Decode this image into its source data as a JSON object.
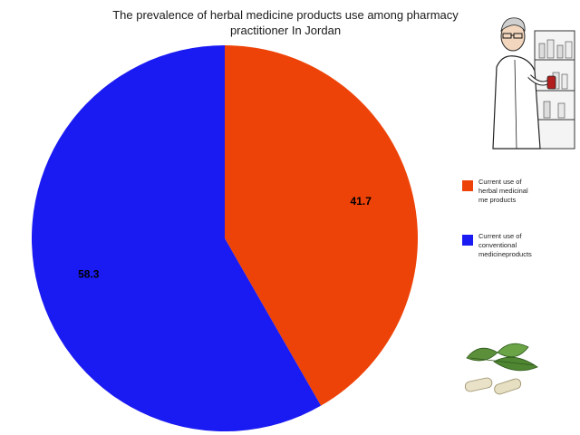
{
  "chart_data": {
    "type": "pie",
    "title_lines": [
      "The prevalence of herbal medicine products use among pharmacy",
      "practitioner In Jordan"
    ],
    "slices": [
      {
        "name": "Current use of herbal medicinal products",
        "legend_lines": [
          "Current use of",
          "herbal medicinal",
          "me products"
        ],
        "value": 41.7,
        "label": "41.7",
        "color": "#ee4308"
      },
      {
        "name": "Current use of conventional medicine products",
        "legend_lines": [
          "Current use of",
          "conventional",
          "medicineproducts"
        ],
        "value": 58.3,
        "label": "58.3",
        "color": "#1a1af2"
      }
    ],
    "start_angle_deg": 0,
    "direction": "clockwise",
    "legend_position": "right"
  },
  "decorations": {
    "top_right_image": "pharmacist-illustration",
    "bottom_right_image": "herbal-capsules-leaves"
  }
}
